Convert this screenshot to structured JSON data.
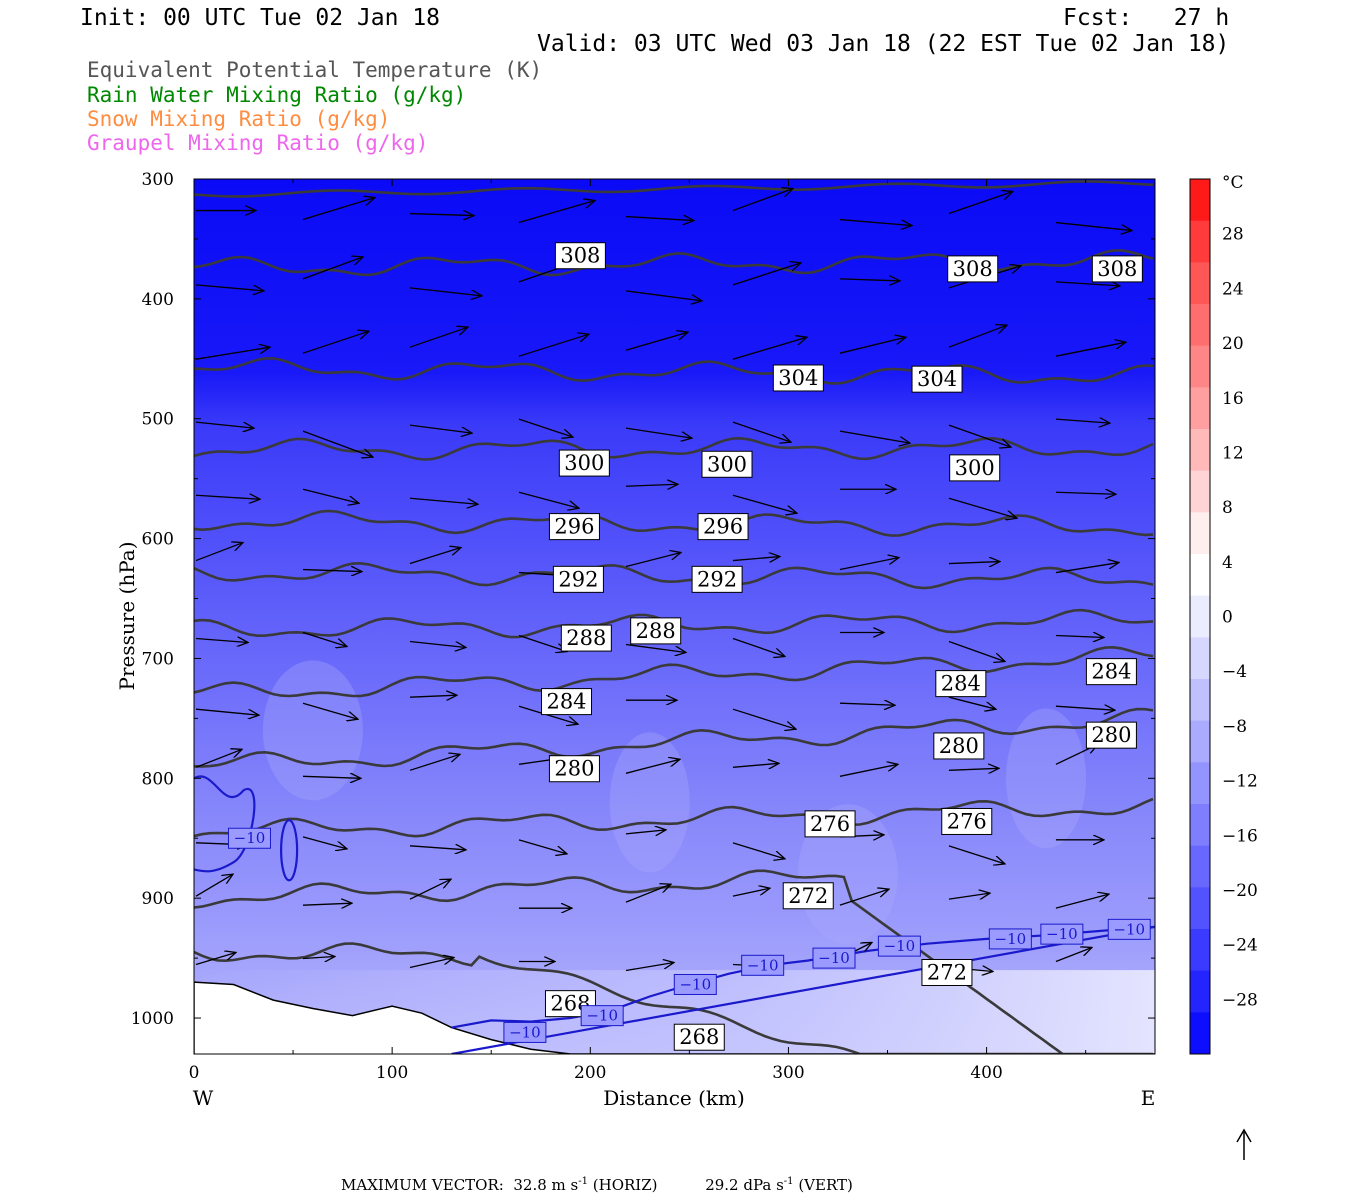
{
  "header": {
    "init": "Init: 00 UTC Tue 02 Jan 18",
    "fcst": "Fcst:   27 h",
    "valid": "Valid: 03 UTC Wed 03 Jan 18 (22 EST Tue 02 Jan 18)"
  },
  "legend": [
    {
      "text": "Equivalent Potential Temperature (K)",
      "color": "#555555"
    },
    {
      "text": "Rain Water Mixing Ratio (g/kg)",
      "color": "#008800"
    },
    {
      "text": "Snow Mixing Ratio (g/kg)",
      "color": "#ff8c40"
    },
    {
      "text": "Graupel Mixing Ratio (g/kg)",
      "color": "#ee66ee"
    }
  ],
  "colorbar": {
    "unit": "°C",
    "labels": [
      "28",
      "24",
      "20",
      "16",
      "12",
      "8",
      "4",
      "0",
      "−4",
      "−8",
      "−12",
      "−16",
      "−20",
      "−24",
      "−28"
    ],
    "colors": [
      "#ff1a1a",
      "#ff3b3b",
      "#ff5656",
      "#ff6e6e",
      "#ff8686",
      "#ff9f9f",
      "#ffb9b9",
      "#ffd4d4",
      "#ffeeee",
      "#ffffff",
      "#ececff",
      "#d6d6ff",
      "#c0c0ff",
      "#aaaaff",
      "#9494ff",
      "#7e7eff",
      "#6868ff",
      "#5252ff",
      "#3b3bff",
      "#2424ff",
      "#0e0eff"
    ]
  },
  "chart_data": {
    "type": "cross-section",
    "xlabel": "Distance (km)",
    "ylabel": "Pressure (hPa)",
    "xlim": [
      0,
      485
    ],
    "ylim": [
      1030,
      300
    ],
    "x_ticks": [
      "0",
      "100",
      "200",
      "300",
      "400"
    ],
    "y_ticks": [
      "300",
      "400",
      "500",
      "600",
      "700",
      "800",
      "900",
      "1000"
    ],
    "left_end": "W",
    "right_end": "E",
    "theta_e_levels": [
      268,
      272,
      276,
      280,
      284,
      288,
      292,
      296,
      300,
      304,
      308
    ],
    "theta_e_labels": [
      {
        "text": "308",
        "x": 195,
        "p": 364
      },
      {
        "text": "308",
        "x": 393,
        "p": 375
      },
      {
        "text": "308",
        "x": 466,
        "p": 375
      },
      {
        "text": "304",
        "x": 305,
        "p": 466
      },
      {
        "text": "304",
        "x": 375,
        "p": 467
      },
      {
        "text": "300",
        "x": 197,
        "p": 537
      },
      {
        "text": "300",
        "x": 269,
        "p": 538
      },
      {
        "text": "300",
        "x": 394,
        "p": 541
      },
      {
        "text": "296",
        "x": 192,
        "p": 590
      },
      {
        "text": "296",
        "x": 267,
        "p": 590
      },
      {
        "text": "292",
        "x": 194,
        "p": 634
      },
      {
        "text": "292",
        "x": 264,
        "p": 634
      },
      {
        "text": "288",
        "x": 198,
        "p": 683
      },
      {
        "text": "288",
        "x": 233,
        "p": 677
      },
      {
        "text": "284",
        "x": 188,
        "p": 736
      },
      {
        "text": "284",
        "x": 387,
        "p": 721
      },
      {
        "text": "284",
        "x": 463,
        "p": 711
      },
      {
        "text": "280",
        "x": 192,
        "p": 792
      },
      {
        "text": "280",
        "x": 386,
        "p": 773
      },
      {
        "text": "280",
        "x": 463,
        "p": 764
      },
      {
        "text": "276",
        "x": 321,
        "p": 838
      },
      {
        "text": "276",
        "x": 390,
        "p": 836
      },
      {
        "text": "272",
        "x": 310,
        "p": 898
      },
      {
        "text": "272",
        "x": 380,
        "p": 962
      },
      {
        "text": "268",
        "x": 190,
        "p": 988
      },
      {
        "text": "268",
        "x": 255,
        "p": 1016
      }
    ],
    "temp_labels": [
      {
        "text": "−10",
        "x": 28,
        "p": 850
      },
      {
        "text": "−10",
        "x": 167,
        "p": 1012
      },
      {
        "text": "−10",
        "x": 206,
        "p": 998
      },
      {
        "text": "−10",
        "x": 253,
        "p": 972
      },
      {
        "text": "−10",
        "x": 287,
        "p": 956
      },
      {
        "text": "−10",
        "x": 323,
        "p": 950
      },
      {
        "text": "−10",
        "x": 356,
        "p": 940
      },
      {
        "text": "−10",
        "x": 412,
        "p": 934
      },
      {
        "text": "−10",
        "x": 438,
        "p": 930
      },
      {
        "text": "−10",
        "x": 472,
        "p": 926
      }
    ]
  },
  "footer": {
    "label": "MAXIMUM VECTOR:",
    "horiz": "32.8 m s",
    "horiz_unit": " (HORIZ)",
    "vert": "29.2 dPa s",
    "vert_unit": " (VERT)",
    "exp": "-1"
  }
}
